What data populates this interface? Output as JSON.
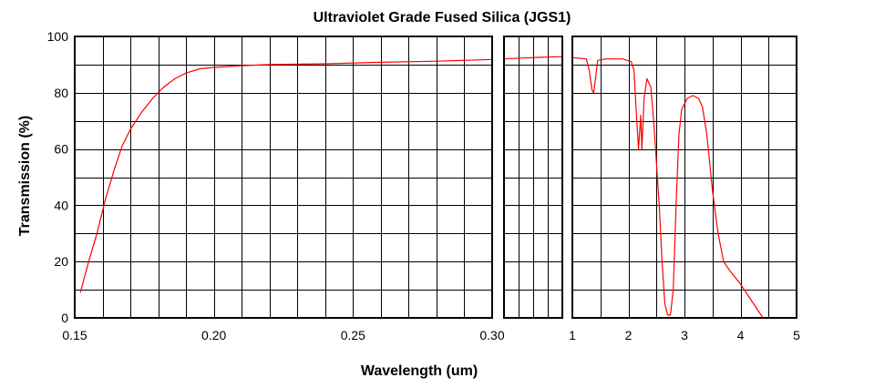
{
  "chart_data": {
    "type": "line",
    "title": "Ultraviolet Grade Fused Silica (JGS1)",
    "xlabel": "Wavelength (um)",
    "ylabel": "Transmission (%)",
    "ylim": [
      0,
      100
    ],
    "yticks": [
      "0",
      "20",
      "40",
      "60",
      "80",
      "100"
    ],
    "grid": true,
    "panels": [
      {
        "name": "uv",
        "xlim": [
          0.15,
          0.3
        ],
        "xticks": [
          {
            "value": 0.15,
            "label": "0.15"
          },
          {
            "value": 0.2,
            "label": "0.20"
          },
          {
            "value": 0.25,
            "label": "0.25"
          },
          {
            "value": 0.3,
            "label": "0.30"
          }
        ],
        "grid_step": 0.01,
        "points": [
          [
            0.152,
            9
          ],
          [
            0.155,
            20
          ],
          [
            0.158,
            30
          ],
          [
            0.161,
            42
          ],
          [
            0.164,
            52
          ],
          [
            0.167,
            61
          ],
          [
            0.17,
            67
          ],
          [
            0.174,
            73
          ],
          [
            0.178,
            78
          ],
          [
            0.182,
            82
          ],
          [
            0.186,
            85
          ],
          [
            0.19,
            87
          ],
          [
            0.195,
            88.5
          ],
          [
            0.2,
            89
          ],
          [
            0.21,
            89.6
          ],
          [
            0.22,
            90
          ],
          [
            0.24,
            90.3
          ],
          [
            0.26,
            90.8
          ],
          [
            0.28,
            91.2
          ],
          [
            0.3,
            91.8
          ]
        ]
      },
      {
        "name": "visible",
        "xlim": [
          0.3,
          1.0
        ],
        "xticks": [],
        "gridlines": [
          0.475,
          0.65,
          0.825
        ],
        "points": [
          [
            0.3,
            92
          ],
          [
            0.5,
            92.3
          ],
          [
            0.75,
            92.6
          ],
          [
            1.0,
            92.8
          ]
        ]
      },
      {
        "name": "ir",
        "xlim": [
          1,
          5
        ],
        "xticks": [
          {
            "value": 1,
            "label": "1"
          },
          {
            "value": 2,
            "label": "2"
          },
          {
            "value": 3,
            "label": "3"
          },
          {
            "value": 4,
            "label": "4"
          },
          {
            "value": 5,
            "label": "5"
          }
        ],
        "grid_step": 0.5,
        "points": [
          [
            1.0,
            92.5
          ],
          [
            1.25,
            92
          ],
          [
            1.3,
            88
          ],
          [
            1.35,
            81
          ],
          [
            1.38,
            80
          ],
          [
            1.42,
            86
          ],
          [
            1.45,
            91.5
          ],
          [
            1.6,
            92
          ],
          [
            1.9,
            92
          ],
          [
            2.05,
            91
          ],
          [
            2.1,
            88
          ],
          [
            2.15,
            70
          ],
          [
            2.18,
            60
          ],
          [
            2.22,
            72
          ],
          [
            2.24,
            60
          ],
          [
            2.28,
            78
          ],
          [
            2.33,
            85
          ],
          [
            2.4,
            82
          ],
          [
            2.45,
            70
          ],
          [
            2.5,
            55
          ],
          [
            2.55,
            40
          ],
          [
            2.6,
            20
          ],
          [
            2.65,
            5
          ],
          [
            2.7,
            1
          ],
          [
            2.75,
            1
          ],
          [
            2.8,
            10
          ],
          [
            2.85,
            40
          ],
          [
            2.9,
            65
          ],
          [
            2.95,
            74
          ],
          [
            3.05,
            78
          ],
          [
            3.15,
            79
          ],
          [
            3.25,
            78
          ],
          [
            3.32,
            75
          ],
          [
            3.4,
            65
          ],
          [
            3.45,
            55
          ],
          [
            3.5,
            45
          ],
          [
            3.6,
            30
          ],
          [
            3.7,
            20
          ],
          [
            3.8,
            17
          ],
          [
            4.0,
            12
          ],
          [
            4.2,
            6
          ],
          [
            4.4,
            0
          ]
        ]
      }
    ]
  }
}
